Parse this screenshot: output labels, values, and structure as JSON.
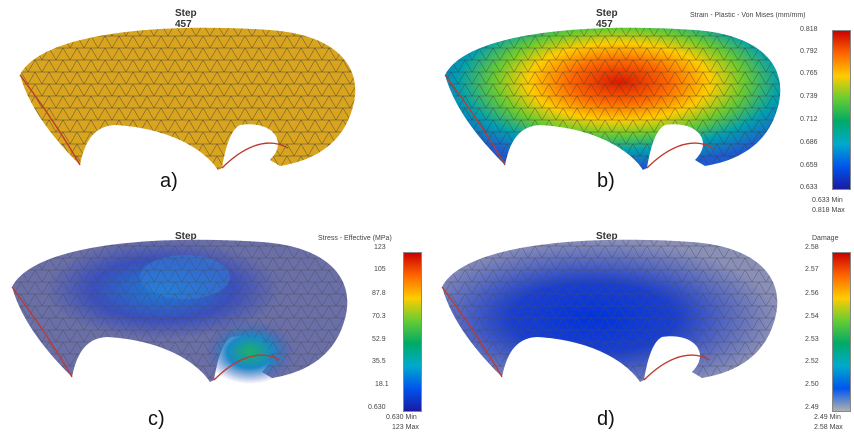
{
  "panels": [
    {
      "id": "a",
      "step": "Step  457",
      "label": "a)",
      "legend": null
    },
    {
      "id": "b",
      "step": "Step  457",
      "label": "b)",
      "legend": {
        "title": "Strain - Plastic - Von Mises (mm/mm)",
        "ticks": [
          "0.818",
          "0.792",
          "0.765",
          "0.739",
          "0.712",
          "0.686",
          "0.659",
          "0.633"
        ],
        "min_value": "0.633",
        "min_label": "Min",
        "max_value": "0.818",
        "max_label": "Max"
      }
    },
    {
      "id": "c",
      "step": "Step  457",
      "label": "c)",
      "legend": {
        "title": "Stress - Effective (MPa)",
        "ticks": [
          "123",
          "105",
          "87.8",
          "70.3",
          "52.9",
          "35.5",
          "18.1",
          "0.630"
        ],
        "min_value": "0.630",
        "min_label": "Min",
        "max_value": "123",
        "max_label": "Max"
      }
    },
    {
      "id": "d",
      "step": "Step  457",
      "label": "d)",
      "legend": {
        "title": "Damage",
        "ticks": [
          "2.58",
          "2.57",
          "2.56",
          "2.54",
          "2.53",
          "2.52",
          "2.50",
          "2.49"
        ],
        "min_value": "2.49",
        "min_label": "Min",
        "max_value": "2.58",
        "max_label": "Max"
      }
    }
  ],
  "colors": {
    "mesh_a": "#d9a51e",
    "mesh_line": "#3a3a3a",
    "edge_red": "#c0392b",
    "rainbow": [
      "#cc0000",
      "#ff6600",
      "#ffcc00",
      "#66cc33",
      "#00aa66",
      "#00aacc",
      "#0055ee",
      "#1a1aa0"
    ],
    "rainbow_d": [
      "#cc0000",
      "#ff6600",
      "#ffcc00",
      "#66cc33",
      "#00aa66",
      "#00aacc",
      "#0055ee",
      "#b0b0b0"
    ]
  }
}
